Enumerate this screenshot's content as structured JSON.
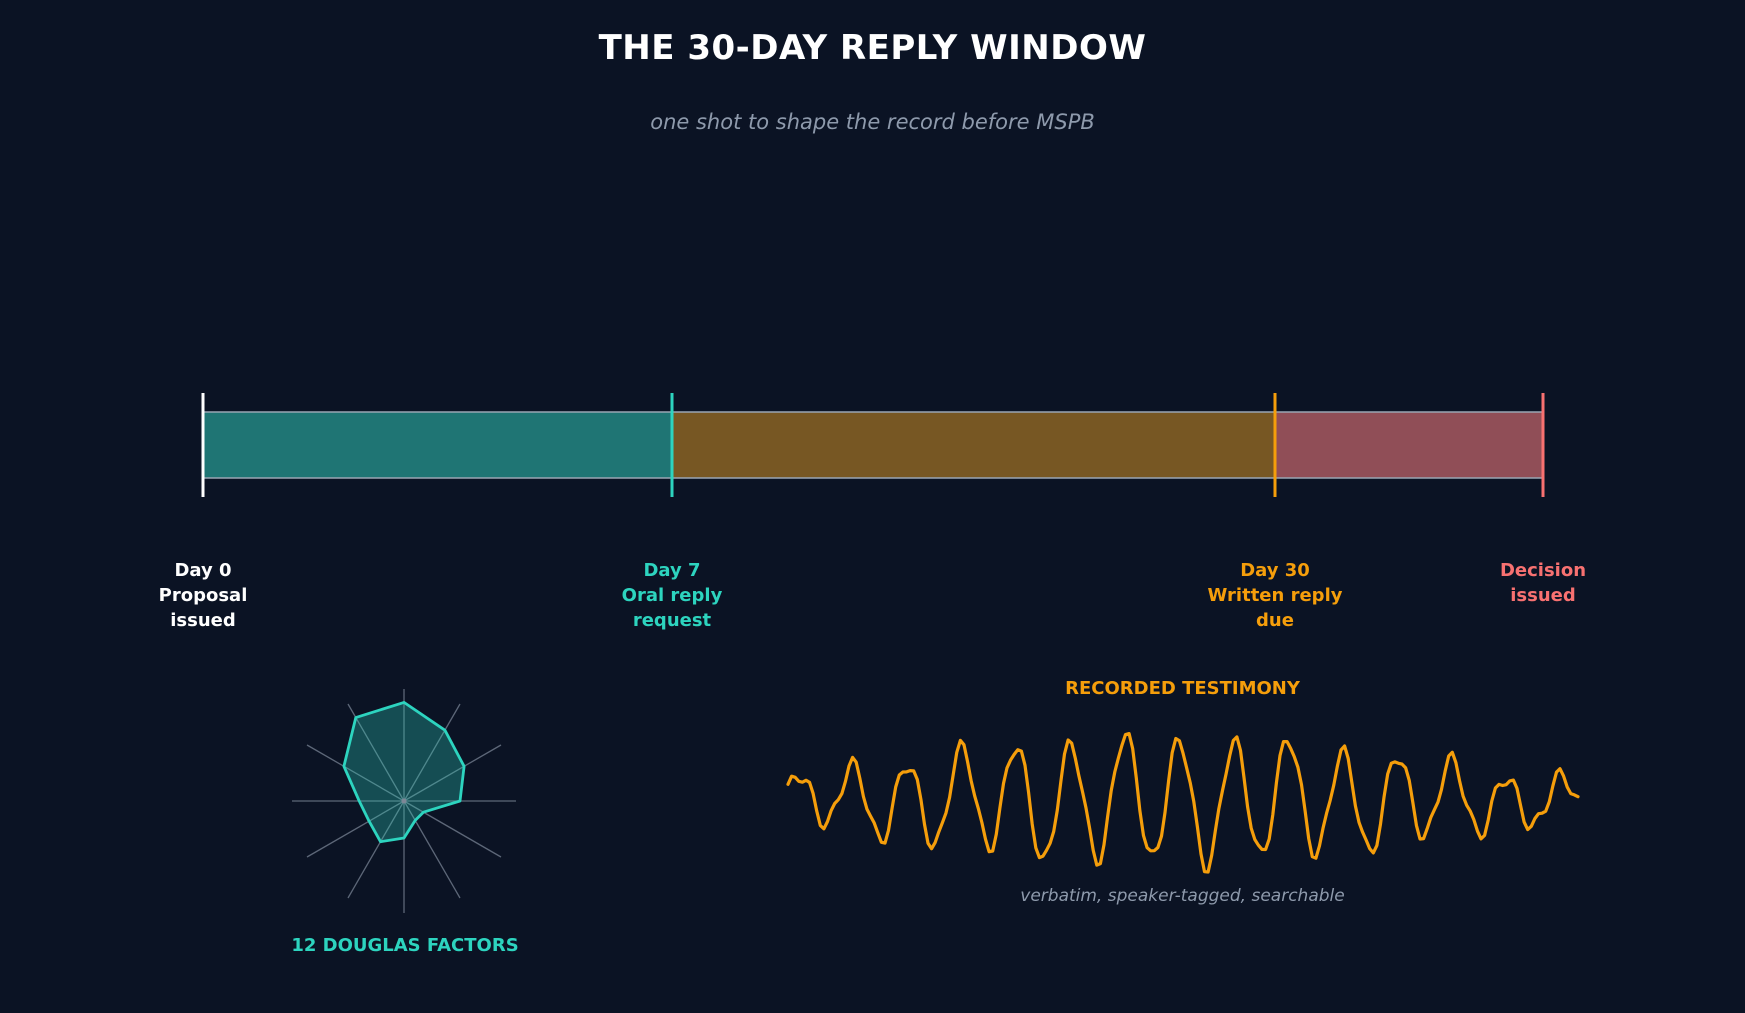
{
  "header": {
    "title": "THE 30-DAY REPLY WINDOW",
    "subtitle": "one shot to shape the record before MSPB"
  },
  "timeline": {
    "milestones": [
      {
        "lines": [
          "Day 0",
          "Proposal",
          "issued"
        ],
        "color": "#ffffff"
      },
      {
        "lines": [
          "Day 7",
          "Oral reply",
          "request"
        ],
        "color": "#2dd4bf"
      },
      {
        "lines": [
          "Day 30",
          "Written reply",
          "due"
        ],
        "color": "#f59e0b"
      },
      {
        "lines": [
          "Decision",
          "issued"
        ],
        "color": "#f87171"
      }
    ],
    "segment_colors": [
      "#1f7574",
      "#775723",
      "#904e57"
    ]
  },
  "douglas": {
    "caption": "12 DOUGLAS FACTORS",
    "factor_count": 12,
    "color": "#2dd4bf",
    "scores": [
      0.88,
      0.73,
      0.62,
      0.5,
      0.2,
      0.2,
      0.33,
      0.42,
      0.36,
      0.4,
      0.62,
      0.86
    ]
  },
  "testimony": {
    "title": "RECORDED TESTIMONY",
    "caption": "verbatim, speaker-tagged, searchable",
    "color": "#f59e0b"
  }
}
